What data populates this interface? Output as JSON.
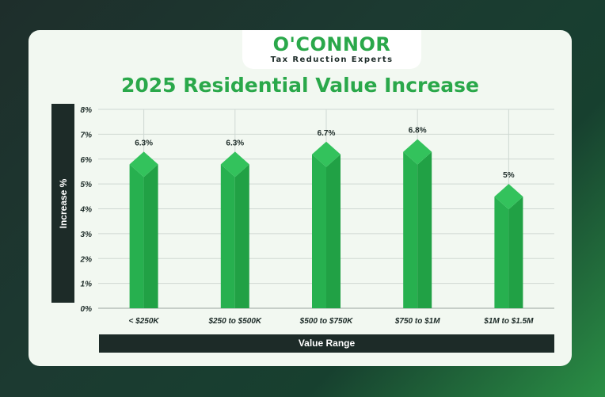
{
  "brand": {
    "name": "O'CONNOR",
    "tagline": "Tax Reduction Experts"
  },
  "colors": {
    "accent": "#2aa84a",
    "bar": "#27b04f",
    "bar_top": "#33c25c",
    "dark": "#1d2b28",
    "card": "#f2f8f1"
  },
  "chart_data": {
    "type": "bar",
    "title": "2025 Residential Value Increase",
    "xlabel": "Value Range",
    "ylabel": "Increase %",
    "categories": [
      "< $250K",
      "$250 to $500K",
      "$500 to $750K",
      "$750 to $1M",
      "$1M to $1.5M"
    ],
    "values": [
      6.3,
      6.3,
      6.7,
      6.8,
      5
    ],
    "data_labels": [
      "6.3%",
      "6.3%",
      "6.7%",
      "6.8%",
      "5%"
    ],
    "yticks": [
      "0%",
      "1%",
      "2%",
      "3%",
      "4%",
      "5%",
      "6%",
      "7%",
      "8%"
    ],
    "ylim": [
      0,
      8
    ],
    "grid": true,
    "legend": "none"
  }
}
